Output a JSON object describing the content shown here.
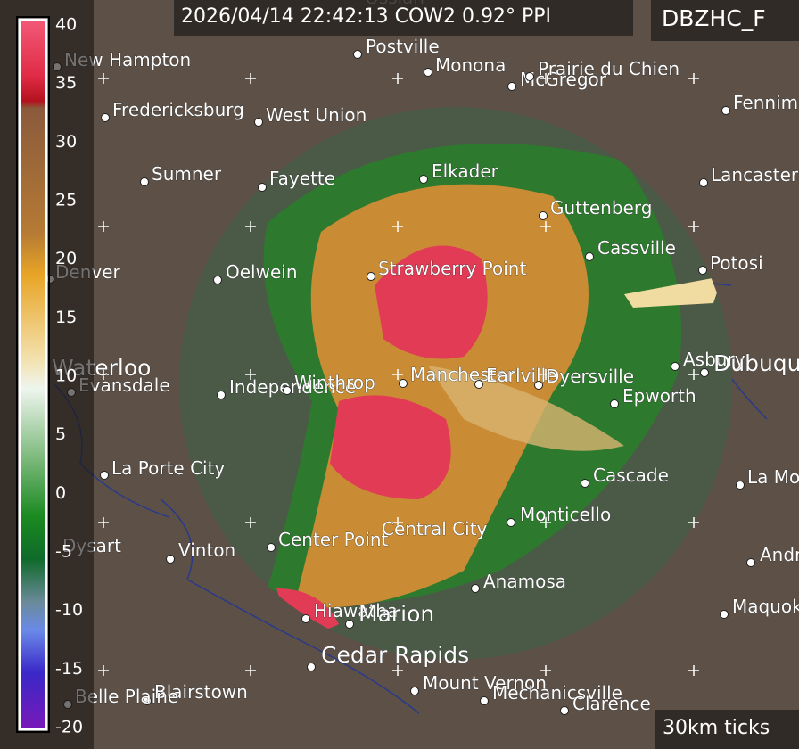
{
  "header": {
    "scan": "2026/04/14 22:42:13 COW2 0.92° PPI",
    "product": "DBZHC_F"
  },
  "footer": {
    "tick_note": "30km ticks"
  },
  "colorbar": {
    "ticks": [
      40,
      35,
      30,
      25,
      20,
      15,
      10,
      5,
      0,
      -5,
      -10,
      -15,
      -20
    ]
  },
  "cities": [
    "Ossian",
    "New Hampton",
    "Postville",
    "Monona",
    "McGregor",
    "Prairie du Chien",
    "Fennimore",
    "Fredericksburg",
    "West Union",
    "Sumner",
    "Fayette",
    "Elkader",
    "Lancaster",
    "Guttenberg",
    "Cassville",
    "Potosi",
    "Denver",
    "Oelwein",
    "Strawberry Point",
    "Waterloo",
    "Evansdale",
    "Independence",
    "Winthrop",
    "Manchester",
    "Earlville",
    "Dyersville",
    "Asbury",
    "Dubuque",
    "Epworth",
    "La Porte City",
    "Cascade",
    "La Motte",
    "Dysart",
    "Vinton",
    "Center Point",
    "Central City",
    "Monticello",
    "Andrew",
    "Anamosa",
    "Maquoketa",
    "Hiawatha",
    "Marion",
    "Cedar Rapids",
    "Blairstown",
    "Belle Plaine",
    "Mount Vernon",
    "Mechanicsville",
    "Clarence"
  ]
}
